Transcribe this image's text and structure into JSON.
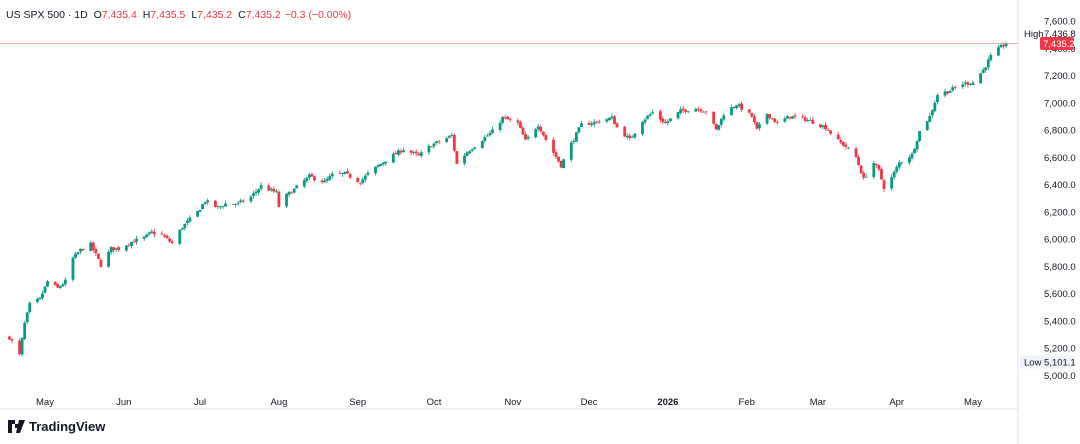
{
  "header": {
    "symbol": "US SPX 500 · 1D",
    "o_label": "O",
    "o_value": "7,435.4",
    "h_label": "H",
    "h_value": "7,435.5",
    "l_label": "L",
    "l_value": "7,435.2",
    "c_label": "C",
    "c_value": "7,435.2",
    "change": "−0.3 (−0.00%)"
  },
  "logo_text": "TradingView",
  "colors": {
    "up": "#089981",
    "down": "#f23645",
    "price_line": "#f23645",
    "text": "#131722",
    "grid": "#f0f3fa"
  },
  "chart_data": {
    "type": "candlestick",
    "yticks": [
      "7,600.0",
      "7,400.0",
      "7,200.0",
      "7,000.0",
      "6,800.0",
      "6,600.0",
      "6,400.0",
      "6,200.0",
      "6,000.0",
      "5,800.0",
      "5,600.0",
      "5,400.0",
      "5,200.0",
      "5,000.0"
    ],
    "ytick_values": [
      7600,
      7400,
      7200,
      7000,
      6800,
      6600,
      6400,
      6200,
      6000,
      5800,
      5600,
      5400,
      5200,
      5000
    ],
    "xticks": [
      {
        "label": "May",
        "date": "2025-05-01"
      },
      {
        "label": "Jun",
        "date": "2025-06-01"
      },
      {
        "label": "Jul",
        "date": "2025-07-01"
      },
      {
        "label": "Aug",
        "date": "2025-08-01"
      },
      {
        "label": "Sep",
        "date": "2025-09-01"
      },
      {
        "label": "Oct",
        "date": "2025-10-01"
      },
      {
        "label": "Nov",
        "date": "2025-11-01"
      },
      {
        "label": "Dec",
        "date": "2025-12-01"
      },
      {
        "label": "2026",
        "date": "2026-01-01"
      },
      {
        "label": "Feb",
        "date": "2026-02-01"
      },
      {
        "label": "Mar",
        "date": "2026-03-01"
      },
      {
        "label": "Apr",
        "date": "2026-04-01"
      },
      {
        "label": "May",
        "date": "2026-05-01"
      }
    ],
    "high_label": "High",
    "high_value": "7,436.8",
    "high": 7436.8,
    "low_label": "Low",
    "low_value": "5,101.1",
    "low": 5101.1,
    "last_value": "7,435.2",
    "last": 7435.2,
    "ylim": [
      4960,
      7640
    ],
    "close_path": [
      [
        "2025-04-17",
        5280
      ],
      [
        "2025-04-21",
        5150
      ],
      [
        "2025-04-23",
        5380
      ],
      [
        "2025-04-25",
        5520
      ],
      [
        "2025-04-29",
        5560
      ],
      [
        "2025-05-02",
        5690
      ],
      [
        "2025-05-06",
        5640
      ],
      [
        "2025-05-09",
        5690
      ],
      [
        "2025-05-12",
        5860
      ],
      [
        "2025-05-15",
        5920
      ],
      [
        "2025-05-19",
        5960
      ],
      [
        "2025-05-23",
        5810
      ],
      [
        "2025-05-27",
        5930
      ],
      [
        "2025-05-30",
        5930
      ],
      [
        "2025-06-04",
        5980
      ],
      [
        "2025-06-09",
        6010
      ],
      [
        "2025-06-12",
        6050
      ],
      [
        "2025-06-16",
        6030
      ],
      [
        "2025-06-20",
        5970
      ],
      [
        "2025-06-24",
        6090
      ],
      [
        "2025-06-30",
        6200
      ],
      [
        "2025-07-03",
        6280
      ],
      [
        "2025-07-08",
        6230
      ],
      [
        "2025-07-11",
        6260
      ],
      [
        "2025-07-16",
        6260
      ],
      [
        "2025-07-21",
        6310
      ],
      [
        "2025-07-25",
        6390
      ],
      [
        "2025-07-31",
        6340
      ],
      [
        "2025-08-01",
        6240
      ],
      [
        "2025-08-04",
        6320
      ],
      [
        "2025-08-08",
        6380
      ],
      [
        "2025-08-13",
        6460
      ],
      [
        "2025-08-19",
        6420
      ],
      [
        "2025-08-22",
        6470
      ],
      [
        "2025-08-27",
        6480
      ],
      [
        "2025-09-02",
        6420
      ],
      [
        "2025-09-05",
        6480
      ],
      [
        "2025-09-12",
        6580
      ],
      [
        "2025-09-19",
        6660
      ],
      [
        "2025-09-25",
        6610
      ],
      [
        "2025-09-30",
        6690
      ],
      [
        "2025-10-06",
        6740
      ],
      [
        "2025-10-08",
        6760
      ],
      [
        "2025-10-10",
        6550
      ],
      [
        "2025-10-14",
        6640
      ],
      [
        "2025-10-20",
        6730
      ],
      [
        "2025-10-24",
        6790
      ],
      [
        "2025-10-28",
        6890
      ],
      [
        "2025-11-03",
        6850
      ],
      [
        "2025-11-06",
        6720
      ],
      [
        "2025-11-11",
        6840
      ],
      [
        "2025-11-14",
        6730
      ],
      [
        "2025-11-20",
        6540
      ],
      [
        "2025-11-24",
        6700
      ],
      [
        "2025-11-28",
        6840
      ],
      [
        "2025-12-04",
        6860
      ],
      [
        "2025-12-10",
        6890
      ],
      [
        "2025-12-12",
        6820
      ],
      [
        "2025-12-17",
        6730
      ],
      [
        "2025-12-22",
        6870
      ],
      [
        "2025-12-26",
        6930
      ],
      [
        "2025-12-31",
        6850
      ],
      [
        "2026-01-06",
        6940
      ],
      [
        "2026-01-12",
        6960
      ],
      [
        "2026-01-16",
        6940
      ],
      [
        "2026-01-20",
        6800
      ],
      [
        "2026-01-23",
        6920
      ],
      [
        "2026-01-28",
        6990
      ],
      [
        "2026-02-03",
        6900
      ],
      [
        "2026-02-05",
        6800
      ],
      [
        "2026-02-09",
        6920
      ],
      [
        "2026-02-13",
        6850
      ],
      [
        "2026-02-18",
        6900
      ],
      [
        "2026-02-24",
        6880
      ],
      [
        "2026-02-27",
        6860
      ],
      [
        "2026-03-04",
        6820
      ],
      [
        "2026-03-09",
        6720
      ],
      [
        "2026-03-12",
        6680
      ],
      [
        "2026-03-16",
        6600
      ],
      [
        "2026-03-19",
        6440
      ],
      [
        "2026-03-23",
        6560
      ],
      [
        "2026-03-25",
        6500
      ],
      [
        "2026-03-27",
        6380
      ],
      [
        "2026-03-30",
        6450
      ],
      [
        "2026-04-02",
        6560
      ],
      [
        "2026-04-07",
        6620
      ],
      [
        "2026-04-10",
        6790
      ],
      [
        "2026-04-14",
        6900
      ],
      [
        "2026-04-17",
        7060
      ],
      [
        "2026-04-22",
        7090
      ],
      [
        "2026-04-27",
        7140
      ],
      [
        "2026-05-01",
        7150
      ],
      [
        "2026-05-05",
        7240
      ],
      [
        "2026-05-08",
        7340
      ],
      [
        "2026-05-12",
        7410
      ],
      [
        "2026-05-14",
        7435
      ]
    ]
  }
}
